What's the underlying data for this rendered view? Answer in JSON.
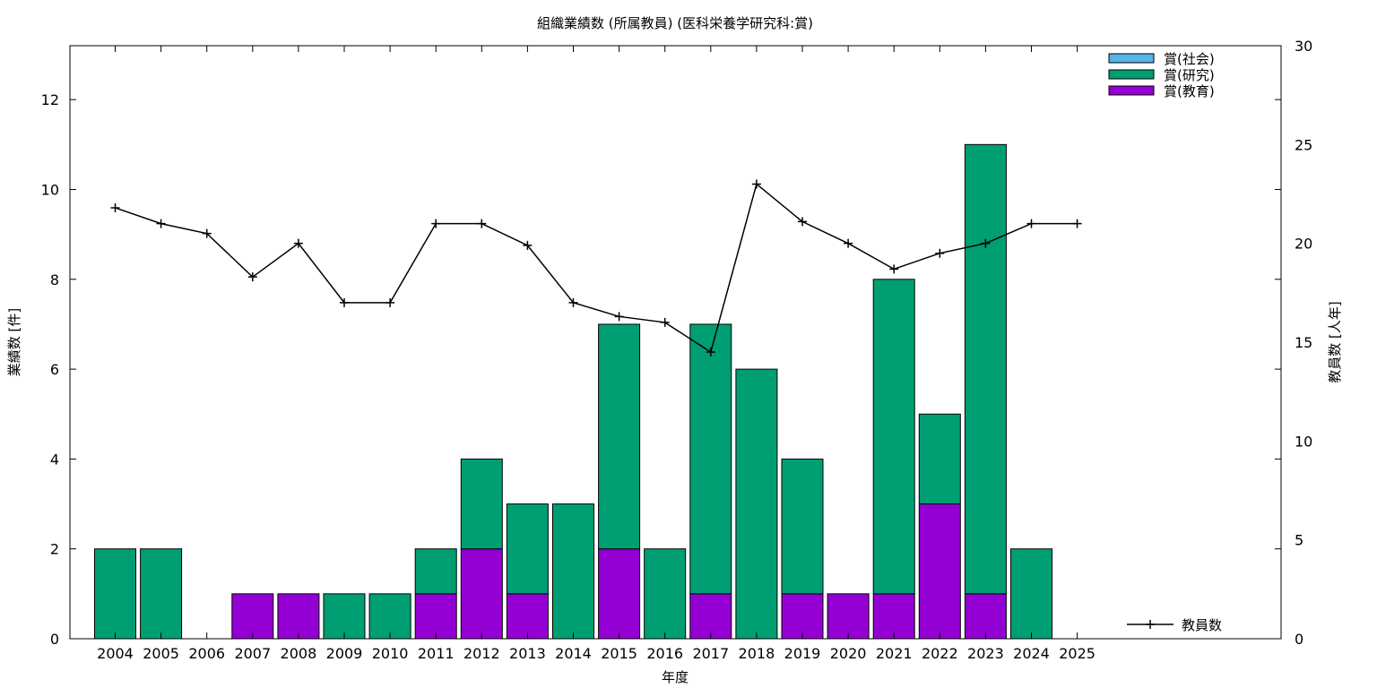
{
  "chart_data": {
    "type": "bar",
    "title": "組織業績数 (所属教員) (医科栄養学研究科:賞)",
    "xlabel": "年度",
    "ylabel": "業績数 [件]",
    "y2label": "教員数 [人年]",
    "ylim": [
      0,
      13.2
    ],
    "y2lim": [
      0,
      30
    ],
    "yticks": [
      0,
      2,
      4,
      6,
      8,
      10,
      12
    ],
    "y2ticks": [
      0,
      5,
      10,
      15,
      20,
      25,
      30
    ],
    "legend_position": "top-right",
    "categories": [
      "2004",
      "2005",
      "2006",
      "2007",
      "2008",
      "2009",
      "2010",
      "2011",
      "2012",
      "2013",
      "2014",
      "2015",
      "2016",
      "2017",
      "2018",
      "2019",
      "2020",
      "2021",
      "2022",
      "2023",
      "2024",
      "2025"
    ],
    "series": [
      {
        "name": "賞(社会)",
        "kind": "stacked-bar",
        "color": "#56b4e9",
        "values": [
          0,
          0,
          0,
          0,
          0,
          0,
          0,
          0,
          0,
          0,
          0,
          0,
          0,
          0,
          0,
          0,
          0,
          0,
          0,
          0,
          0,
          0
        ]
      },
      {
        "name": "賞(研究)",
        "kind": "stacked-bar",
        "color": "#009e73",
        "values": [
          2,
          2,
          0,
          0,
          0,
          1,
          1,
          1,
          2,
          2,
          3,
          5,
          2,
          6,
          6,
          3,
          0,
          7,
          2,
          10,
          2,
          0
        ]
      },
      {
        "name": "賞(教育)",
        "kind": "stacked-bar",
        "color": "#9400d3",
        "values": [
          0,
          0,
          0,
          1,
          1,
          0,
          0,
          1,
          2,
          1,
          0,
          2,
          0,
          1,
          0,
          1,
          1,
          1,
          3,
          1,
          0,
          0
        ]
      },
      {
        "name": "教員数",
        "kind": "line",
        "axis": "y2",
        "color": "#000000",
        "values": [
          21.8,
          21.0,
          20.5,
          18.3,
          20.0,
          17.0,
          17.0,
          21.0,
          21.0,
          19.9,
          17.0,
          16.3,
          16.0,
          14.5,
          23.0,
          21.1,
          20.0,
          18.7,
          19.5,
          20.0,
          21.0,
          21.0
        ]
      }
    ]
  }
}
